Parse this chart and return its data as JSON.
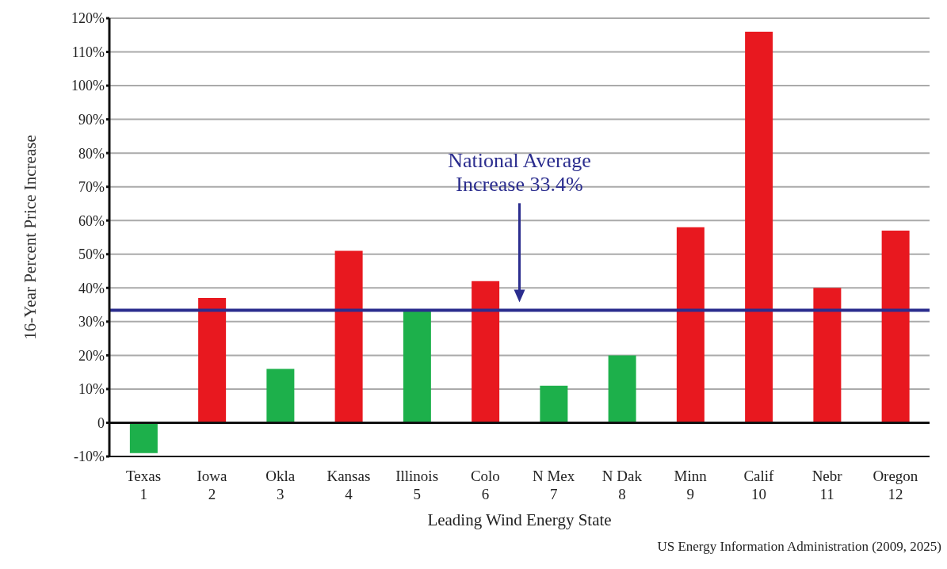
{
  "chart_data": {
    "type": "bar",
    "xlabel": "Leading Wind Energy State",
    "ylabel": "16-Year Percent Price Increase",
    "categories": [
      "Texas\n1",
      "Iowa\n2",
      "Okla\n3",
      "Kansas\n4",
      "Illinois\n5",
      "Colo\n6",
      "N Mex\n7",
      "N Dak\n8",
      "Minn\n9",
      "Calif\n10",
      "Nebr\n11",
      "Oregon\n12"
    ],
    "values": [
      -9,
      37,
      16,
      51,
      33,
      42,
      11,
      20,
      58,
      116,
      40,
      57
    ],
    "colors": [
      "#1db04b",
      "#e8181f",
      "#1db04b",
      "#e8181f",
      "#1db04b",
      "#e8181f",
      "#1db04b",
      "#1db04b",
      "#e8181f",
      "#e8181f",
      "#e8181f",
      "#e8181f"
    ],
    "ylim": [
      -10,
      120
    ],
    "yticks": [
      {
        "value": -10,
        "label": "-10%"
      },
      0,
      {
        "value": 10,
        "label": "10%"
      },
      {
        "value": 20,
        "label": "20%"
      },
      {
        "value": 30,
        "label": "30%"
      },
      {
        "value": 40,
        "label": "40%"
      },
      {
        "value": 50,
        "label": "50%"
      },
      {
        "value": 60,
        "label": "60%"
      },
      {
        "value": 70,
        "label": "70%"
      },
      {
        "value": 80,
        "label": "80%"
      },
      {
        "value": 90,
        "label": "90%"
      },
      {
        "value": 100,
        "label": "100%"
      },
      {
        "value": 110,
        "label": "110%"
      },
      {
        "value": 120,
        "label": "120%"
      }
    ],
    "grid": "y",
    "ref_lines": [
      {
        "axis": "y",
        "value": 33.4,
        "label": "National Average\nIncrease 33.4%",
        "color": "#2b2d8e"
      }
    ],
    "annotations": [
      "US Energy Information Administration (2009, 2025)"
    ]
  }
}
